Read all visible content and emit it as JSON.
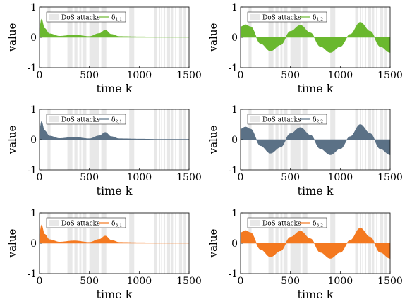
{
  "chart_data": [
    {
      "type": "area",
      "ylabel": "value",
      "xlabel": "time k",
      "xlim": [
        0,
        1500
      ],
      "ylim": [
        -1,
        1
      ],
      "xticks": [
        "0",
        "500",
        "1000",
        "1500"
      ],
      "yticks": [
        "1",
        "0",
        "-1"
      ],
      "legend_position": "top-left",
      "legend": {
        "dos_label": "DoS attacks",
        "series_label": "δ",
        "series_sub": "1,1"
      },
      "color": "#6ab82e",
      "series": [
        {
          "x": [
            0,
            20,
            50,
            100,
            200,
            350,
            500,
            600,
            660,
            720,
            800,
            1000,
            1200,
            1500
          ],
          "y": [
            0.3,
            0.6,
            0.3,
            0.12,
            0.04,
            0.08,
            0.03,
            0.13,
            0.24,
            0.1,
            0.03,
            0.02,
            0.01,
            0.01
          ]
        }
      ]
    },
    {
      "type": "area",
      "ylabel": "value",
      "xlabel": "time k",
      "xlim": [
        0,
        1500
      ],
      "ylim": [
        -1,
        1
      ],
      "xticks": [
        "0",
        "500",
        "1000",
        "1500"
      ],
      "yticks": [
        "1",
        "0",
        "-1"
      ],
      "legend_position": "top-left",
      "legend": {
        "dos_label": "DoS attacks",
        "series_label": "δ",
        "series_sub": "1,2"
      },
      "color": "#6ab82e",
      "series": [
        {
          "x": [
            0,
            50,
            100,
            200,
            300,
            400,
            500,
            600,
            700,
            800,
            900,
            1000,
            1100,
            1200,
            1300,
            1400,
            1500
          ],
          "y": [
            0.35,
            0.42,
            0.35,
            -0.2,
            -0.45,
            -0.25,
            0.2,
            0.4,
            0.15,
            -0.3,
            -0.5,
            -0.3,
            0.1,
            0.5,
            0.2,
            -0.3,
            -0.5
          ]
        }
      ]
    },
    {
      "type": "area",
      "ylabel": "value",
      "xlabel": "time k",
      "xlim": [
        0,
        1500
      ],
      "ylim": [
        -1,
        1
      ],
      "xticks": [
        "0",
        "500",
        "1000",
        "1500"
      ],
      "yticks": [
        "1",
        "0",
        "-1"
      ],
      "legend_position": "top-left",
      "legend": {
        "dos_label": "DoS attacks",
        "series_label": "δ",
        "series_sub": "2,1"
      },
      "color": "#5b7186",
      "series": [
        {
          "x": [
            0,
            20,
            50,
            100,
            200,
            350,
            500,
            600,
            660,
            720,
            800,
            1000,
            1200,
            1500
          ],
          "y": [
            0.3,
            0.6,
            0.3,
            0.12,
            0.04,
            0.08,
            0.03,
            0.13,
            0.24,
            0.1,
            0.03,
            0.02,
            0.01,
            0.01
          ]
        }
      ]
    },
    {
      "type": "area",
      "ylabel": "value",
      "xlabel": "time k",
      "xlim": [
        0,
        1500
      ],
      "ylim": [
        -1,
        1
      ],
      "xticks": [
        "0",
        "500",
        "1000",
        "1500"
      ],
      "yticks": [
        "1",
        "0",
        "-1"
      ],
      "legend_position": "top-left",
      "legend": {
        "dos_label": "DoS attacks",
        "series_label": "δ",
        "series_sub": "2,2"
      },
      "color": "#5b7186",
      "series": [
        {
          "x": [
            0,
            50,
            100,
            200,
            300,
            400,
            500,
            600,
            700,
            800,
            900,
            1000,
            1100,
            1200,
            1300,
            1400,
            1500
          ],
          "y": [
            0.35,
            0.42,
            0.35,
            -0.2,
            -0.45,
            -0.25,
            0.2,
            0.4,
            0.15,
            -0.3,
            -0.5,
            -0.3,
            0.1,
            0.5,
            0.2,
            -0.3,
            -0.5
          ]
        }
      ]
    },
    {
      "type": "area",
      "ylabel": "value",
      "xlabel": "time k",
      "xlim": [
        0,
        1500
      ],
      "ylim": [
        -1,
        1
      ],
      "xticks": [
        "0",
        "500",
        "1000",
        "1500"
      ],
      "yticks": [
        "1",
        "0",
        "-1"
      ],
      "legend_position": "top-left",
      "legend": {
        "dos_label": "DoS attacks",
        "series_label": "δ",
        "series_sub": "3,1"
      },
      "color": "#f47920",
      "series": [
        {
          "x": [
            0,
            20,
            50,
            100,
            200,
            350,
            500,
            600,
            660,
            720,
            800,
            1000,
            1200,
            1500
          ],
          "y": [
            0.3,
            0.6,
            0.3,
            0.12,
            0.04,
            0.08,
            0.03,
            0.13,
            0.24,
            0.1,
            0.03,
            0.02,
            0.01,
            0.01
          ]
        }
      ]
    },
    {
      "type": "area",
      "ylabel": "value",
      "xlabel": "time k",
      "xlim": [
        0,
        1500
      ],
      "ylim": [
        -1,
        1
      ],
      "xticks": [
        "0",
        "500",
        "1000",
        "1500"
      ],
      "yticks": [
        "1",
        "0",
        "-1"
      ],
      "legend_position": "top-left",
      "legend": {
        "dos_label": "DoS attacks",
        "series_label": "δ",
        "series_sub": "3,2"
      },
      "color": "#f47920",
      "series": [
        {
          "x": [
            0,
            50,
            100,
            200,
            300,
            400,
            500,
            600,
            700,
            800,
            900,
            1000,
            1100,
            1200,
            1300,
            1400,
            1500
          ],
          "y": [
            0.35,
            0.42,
            0.35,
            -0.2,
            -0.45,
            -0.25,
            0.2,
            0.4,
            0.15,
            -0.3,
            -0.5,
            -0.3,
            0.1,
            0.5,
            0.2,
            -0.3,
            -0.5
          ]
        }
      ]
    }
  ],
  "dos_intervals": [
    [
      80,
      110
    ],
    [
      280,
      330
    ],
    [
      350,
      380
    ],
    [
      400,
      420
    ],
    [
      430,
      470
    ],
    [
      500,
      600
    ],
    [
      620,
      670
    ],
    [
      900,
      950
    ],
    [
      1150,
      1180
    ],
    [
      1200,
      1210
    ],
    [
      1220,
      1230
    ],
    [
      1245,
      1260
    ],
    [
      1280,
      1310
    ],
    [
      1320,
      1340
    ],
    [
      1360,
      1370
    ],
    [
      1400,
      1430
    ],
    [
      1445,
      1470
    ]
  ]
}
